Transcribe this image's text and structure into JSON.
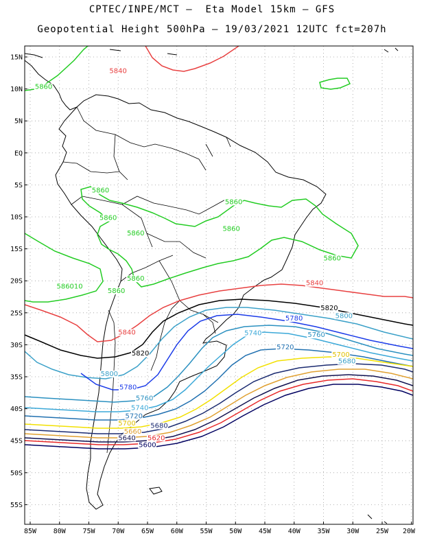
{
  "header": {
    "title_line1": "CPTEC/INPE/MCT –  Eta Model 15km – GFS",
    "title_line2": "Geopotential Height 500hPa – 19/03/2021 12UTC fct=207h"
  },
  "axes": {
    "lat_ticks": [
      "15N",
      "10N",
      "5N",
      "EQ",
      "5S",
      "10S",
      "15S",
      "20S",
      "25S",
      "30S",
      "35S",
      "40S",
      "45S",
      "50S",
      "55S"
    ],
    "lon_ticks": [
      "85W",
      "80W",
      "75W",
      "70W",
      "65W",
      "60W",
      "55W",
      "50W",
      "45W",
      "40W",
      "35W",
      "30W",
      "25W",
      "20W"
    ],
    "grid": true
  },
  "colors": {
    "c5860": "#22cc22",
    "c5840": "#e84040",
    "c5820": "#000000",
    "c5800": "#3aa0c8",
    "c5780": "#1a3ae8",
    "c5760": "#2a90c0",
    "c5740": "#3aa8d8",
    "c5720": "#2070b0",
    "c5700": "#f2e000",
    "c5680": "#1a2a70",
    "c5660": "#e0a030",
    "c5640": "#101050",
    "c5620": "#e82828",
    "c5600": "#000060",
    "land": "#000000"
  },
  "contour_labels": [
    {
      "text": "5840",
      "lon": -71.5,
      "lat": 12.5,
      "color": "#e84040"
    },
    {
      "text": "5860",
      "lon": -84.2,
      "lat": 10.0,
      "color": "#22cc22"
    },
    {
      "text": "5860",
      "lon": -74.5,
      "lat": -6.2,
      "color": "#22cc22"
    },
    {
      "text": "5860",
      "lon": -73.2,
      "lat": -10.5,
      "color": "#22cc22"
    },
    {
      "text": "5860",
      "lon": -68.5,
      "lat": -12.9,
      "color": "#22cc22"
    },
    {
      "text": "5860",
      "lon": -51.8,
      "lat": -8.0,
      "color": "#22cc22"
    },
    {
      "text": "5860",
      "lon": -52.2,
      "lat": -12.2,
      "color": "#22cc22"
    },
    {
      "text": "5860",
      "lon": -35.0,
      "lat": -16.8,
      "color": "#22cc22"
    },
    {
      "text": "5860",
      "lon": -68.5,
      "lat": -20.0,
      "color": "#22cc22"
    },
    {
      "text": "5860",
      "lon": -71.8,
      "lat": -21.9,
      "color": "#22cc22"
    },
    {
      "text": "586010",
      "lon": -80.5,
      "lat": -21.2,
      "color": "#22cc22"
    },
    {
      "text": "5840",
      "lon": -38.0,
      "lat": -20.7,
      "color": "#e84040"
    },
    {
      "text": "5820",
      "lon": -35.5,
      "lat": -24.6,
      "color": "#000000"
    },
    {
      "text": "5800",
      "lon": -33.0,
      "lat": -25.8,
      "color": "#3aa0c8"
    },
    {
      "text": "5780",
      "lon": -41.5,
      "lat": -26.2,
      "color": "#1a3ae8"
    },
    {
      "text": "5760",
      "lon": -37.7,
      "lat": -28.8,
      "color": "#2a90c0"
    },
    {
      "text": "5740",
      "lon": -48.5,
      "lat": -28.5,
      "color": "#3aa8d8"
    },
    {
      "text": "5720",
      "lon": -43.0,
      "lat": -30.7,
      "color": "#2070b0"
    },
    {
      "text": "5700",
      "lon": -33.5,
      "lat": -31.9,
      "color": "#e0c000"
    },
    {
      "text": "5680",
      "lon": -32.5,
      "lat": -32.9,
      "color": "#3aa0c8"
    },
    {
      "text": "5840",
      "lon": -70.0,
      "lat": -28.4,
      "color": "#e84040"
    },
    {
      "text": "5820",
      "lon": -67.7,
      "lat": -31.7,
      "color": "#000000"
    },
    {
      "text": "5800",
      "lon": -73.0,
      "lat": -34.9,
      "color": "#3aa0c8"
    },
    {
      "text": "5780",
      "lon": -69.8,
      "lat": -37.0,
      "color": "#1a3ae8"
    },
    {
      "text": "5760",
      "lon": -67.0,
      "lat": -38.7,
      "color": "#2a90c0"
    },
    {
      "text": "5740",
      "lon": -67.8,
      "lat": -40.2,
      "color": "#3aa8d8"
    },
    {
      "text": "5720",
      "lon": -68.8,
      "lat": -41.5,
      "color": "#2070b0"
    },
    {
      "text": "5700",
      "lon": -70.0,
      "lat": -42.6,
      "color": "#e0c000"
    },
    {
      "text": "5680",
      "lon": -64.5,
      "lat": -43.0,
      "color": "#1a2a70"
    },
    {
      "text": "5660",
      "lon": -69.0,
      "lat": -43.9,
      "color": "#e0a030"
    },
    {
      "text": "5640",
      "lon": -70.0,
      "lat": -44.9,
      "color": "#101050"
    },
    {
      "text": "5620",
      "lon": -65.0,
      "lat": -44.9,
      "color": "#e82828"
    },
    {
      "text": "5600",
      "lon": -66.5,
      "lat": -46.0,
      "color": "#000060"
    }
  ]
}
